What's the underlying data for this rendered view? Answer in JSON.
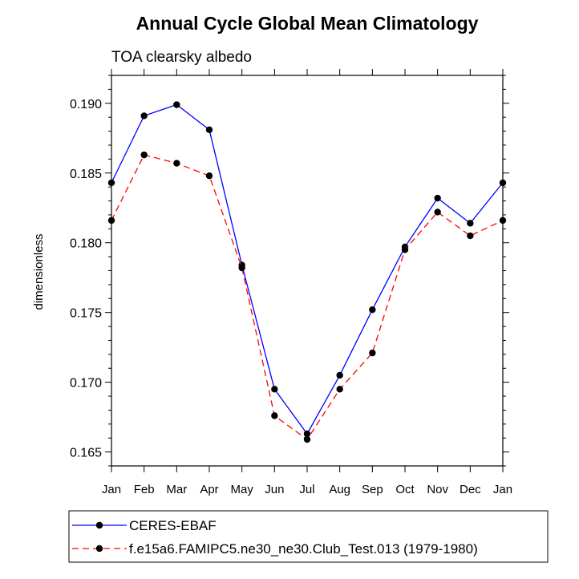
{
  "chart_data": {
    "type": "line",
    "title": "Annual Cycle Global Mean Climatology",
    "subtitle": "TOA clearsky albedo",
    "xlabel": "",
    "ylabel": "dimensionless",
    "categories": [
      "Jan",
      "Feb",
      "Mar",
      "Apr",
      "May",
      "Jun",
      "Jul",
      "Aug",
      "Sep",
      "Oct",
      "Nov",
      "Dec",
      "Jan"
    ],
    "ylim": [
      0.164,
      0.192
    ],
    "yticks": [
      0.165,
      0.17,
      0.175,
      0.18,
      0.185,
      0.19
    ],
    "ytick_labels": [
      "0.165",
      "0.170",
      "0.175",
      "0.180",
      "0.185",
      "0.190"
    ],
    "grid": false,
    "legend_position": "bottom",
    "series": [
      {
        "name": "CERES-EBAF",
        "color": "#0000ff",
        "style": "solid",
        "marker": "dot",
        "values": [
          0.1843,
          0.1891,
          0.1899,
          0.1881,
          0.1784,
          0.1695,
          0.1663,
          0.1705,
          0.1752,
          0.1797,
          0.1832,
          0.1814,
          0.1843
        ]
      },
      {
        "name": "f.e15a6.FAMIPC5.ne30_ne30.Club_Test.013 (1979-1980)",
        "color": "#ff0000",
        "style": "dashed",
        "marker": "dot",
        "values": [
          0.1816,
          0.1863,
          0.1857,
          0.1848,
          0.1782,
          0.1676,
          0.1659,
          0.1695,
          0.1721,
          0.1795,
          0.1822,
          0.1805,
          0.1816
        ]
      }
    ]
  }
}
